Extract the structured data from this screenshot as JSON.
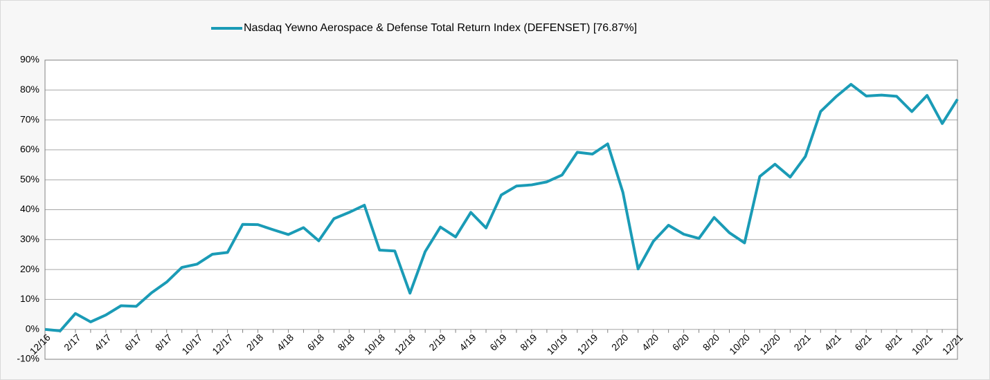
{
  "chart_data": {
    "type": "line",
    "categories": [
      "12/16",
      null,
      "2/17",
      null,
      "4/17",
      null,
      "6/17",
      null,
      "8/17",
      null,
      "10/17",
      null,
      "12/17",
      null,
      "2/18",
      null,
      "4/18",
      null,
      "6/18",
      null,
      "8/18",
      null,
      "10/18",
      null,
      "12/18",
      null,
      "2/19",
      null,
      "4/19",
      null,
      "6/19",
      null,
      "8/19",
      null,
      "10/19",
      null,
      "12/19",
      null,
      "2/20",
      null,
      "4/20",
      null,
      "6/20",
      null,
      "8/20",
      null,
      "10/20",
      null,
      "12/20",
      null,
      "2/21",
      null,
      "4/21",
      null,
      "6/21",
      null,
      "8/21",
      null,
      "10/21",
      null,
      "12/21"
    ],
    "series": [
      {
        "name": "Nasdaq Yewno Aerospace & Defense Total Return Index (DEFENSET) [76.87%]",
        "color": "#1a9bb6",
        "values": [
          0,
          -0.5,
          5.3,
          2.5,
          4.8,
          7.9,
          7.7,
          12.2,
          15.8,
          20.7,
          21.8,
          25.1,
          25.7,
          35.1,
          35.0,
          33.3,
          31.7,
          34.0,
          29.6,
          37.0,
          39.1,
          41.5,
          26.5,
          26.2,
          12.1,
          26.0,
          34.2,
          30.9,
          39.1,
          33.9,
          44.9,
          47.9,
          48.3,
          49.3,
          51.6,
          59.2,
          58.6,
          62.0,
          45.8,
          20.2,
          29.4,
          34.8,
          31.8,
          30.4,
          37.4,
          32.3,
          28.9,
          51.1,
          55.2,
          50.9,
          57.8,
          72.8,
          77.7,
          81.9,
          78.0,
          78.3,
          77.9,
          72.8,
          78.2,
          68.8,
          76.9
        ]
      }
    ],
    "ylim": [
      -10,
      90
    ],
    "yticks": [
      {
        "value": -10,
        "label": "-10%"
      },
      {
        "value": 0,
        "label": "0%"
      },
      {
        "value": 10,
        "label": "10%"
      },
      {
        "value": 20,
        "label": "20%"
      },
      {
        "value": 30,
        "label": "30%"
      },
      {
        "value": 40,
        "label": "40%"
      },
      {
        "value": 50,
        "label": "50%"
      },
      {
        "value": 60,
        "label": "60%"
      },
      {
        "value": 70,
        "label": "70%"
      },
      {
        "value": 80,
        "label": "80%"
      },
      {
        "value": 90,
        "label": "90%"
      }
    ],
    "grid": true,
    "legend": "top"
  }
}
